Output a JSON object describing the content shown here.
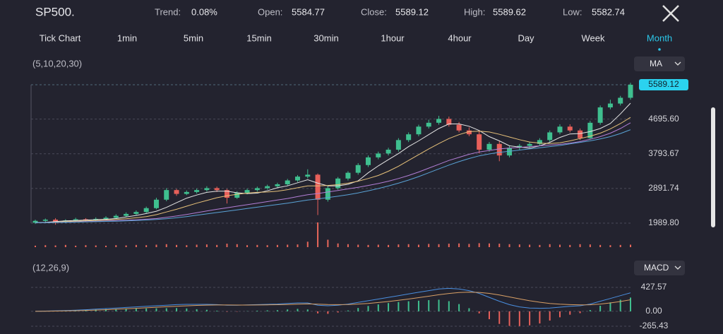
{
  "header": {
    "symbol": "SP500.",
    "fields": [
      {
        "label": "Trend:",
        "value": "0.08%"
      },
      {
        "label": "Open:",
        "value": "5584.77"
      },
      {
        "label": "Close:",
        "value": "5589.12"
      },
      {
        "label": "High:",
        "value": "5589.62"
      },
      {
        "label": "Low:",
        "value": "5582.74"
      }
    ]
  },
  "tabs": [
    "Tick Chart",
    "1min",
    "5min",
    "15min",
    "30min",
    "1hour",
    "4hour",
    "Day",
    "Week",
    "Month"
  ],
  "active_tab": 9,
  "chart_data": [
    {
      "type": "candlestick",
      "indicator_label": "(5,10,20,30)",
      "indicator": "MA",
      "up_color": "#3fbf8f",
      "down_color": "#e8605a",
      "open": [
        2000,
        2050,
        2080,
        2020,
        2060,
        2090,
        2070,
        2100,
        2130,
        2180,
        2230,
        2280,
        2380,
        2600,
        2850,
        2750,
        2800,
        2850,
        2900,
        2850,
        2650,
        2780,
        2850,
        2900,
        2950,
        3000,
        3100,
        3200,
        3250,
        2600,
        2900,
        3150,
        3300,
        3500,
        3700,
        3800,
        3900,
        4150,
        4300,
        4500,
        4600,
        4700,
        4550,
        4400,
        4300,
        3900,
        4050,
        3750,
        3950,
        4000,
        4050,
        4150,
        4350,
        4500,
        4400,
        4200,
        4600,
        5000,
        5100,
        5250
      ],
      "high": [
        2080,
        2110,
        2120,
        2090,
        2130,
        2120,
        2140,
        2170,
        2220,
        2270,
        2320,
        2420,
        2650,
        2900,
        2880,
        2840,
        2890,
        2950,
        2940,
        2880,
        2820,
        2890,
        2940,
        2990,
        3040,
        3140,
        3240,
        3390,
        3280,
        2950,
        3190,
        3340,
        3550,
        3750,
        3850,
        3950,
        4200,
        4350,
        4550,
        4680,
        4780,
        4760,
        4620,
        4480,
        4380,
        4100,
        4120,
        4000,
        4050,
        4100,
        4200,
        4400,
        4560,
        4560,
        4450,
        4650,
        5050,
        5200,
        5300,
        5640
      ],
      "low": [
        1970,
        1990,
        1950,
        1990,
        2020,
        2030,
        2040,
        2070,
        2100,
        2150,
        2200,
        2250,
        2350,
        2560,
        2700,
        2720,
        2760,
        2810,
        2800,
        2500,
        2620,
        2740,
        2810,
        2860,
        2910,
        2960,
        3060,
        3150,
        2200,
        2550,
        2860,
        3100,
        3250,
        3450,
        3650,
        3750,
        3850,
        4100,
        4250,
        4450,
        4550,
        4500,
        4350,
        4250,
        3800,
        3850,
        3600,
        3700,
        3900,
        3950,
        4000,
        4100,
        4300,
        4350,
        4150,
        4180,
        4550,
        4950,
        5050,
        5200
      ],
      "close": [
        2050,
        2080,
        2020,
        2060,
        2090,
        2070,
        2100,
        2130,
        2180,
        2230,
        2280,
        2380,
        2600,
        2850,
        2750,
        2800,
        2850,
        2900,
        2850,
        2650,
        2780,
        2850,
        2900,
        2950,
        3000,
        3100,
        3200,
        3250,
        2600,
        2900,
        3150,
        3300,
        3500,
        3700,
        3800,
        3900,
        4150,
        4300,
        4500,
        4600,
        4700,
        4550,
        4400,
        4300,
        3900,
        4050,
        3750,
        3950,
        4000,
        4050,
        4150,
        4350,
        4500,
        4400,
        4200,
        4600,
        5000,
        5100,
        5250,
        5589.12
      ],
      "series": [
        {
          "color": "#e6e6e6",
          "values": [
            2000,
            2010,
            2030,
            2050,
            2060,
            2070,
            2080,
            2090,
            2110,
            2150,
            2190,
            2240,
            2300,
            2400,
            2520,
            2640,
            2720,
            2790,
            2820,
            2820,
            2780,
            2760,
            2770,
            2830,
            2910,
            2960,
            3040,
            3120,
            3030,
            2960,
            2960,
            3000,
            3090,
            3300,
            3480,
            3640,
            3800,
            3980,
            4130,
            4290,
            4450,
            4570,
            4570,
            4510,
            4400,
            4240,
            4130,
            4000,
            3970,
            3940,
            4000,
            4090,
            4220,
            4310,
            4320,
            4370,
            4450,
            4580,
            4830,
            5110
          ]
        },
        {
          "color": "#e8c27a",
          "values": [
            2000,
            2005,
            2015,
            2030,
            2040,
            2050,
            2060,
            2070,
            2085,
            2105,
            2130,
            2160,
            2210,
            2280,
            2350,
            2430,
            2510,
            2580,
            2650,
            2700,
            2740,
            2770,
            2790,
            2800,
            2820,
            2860,
            2910,
            2960,
            2960,
            2970,
            2990,
            3030,
            3080,
            3150,
            3230,
            3340,
            3470,
            3620,
            3770,
            3920,
            4060,
            4190,
            4290,
            4370,
            4380,
            4360,
            4300,
            4230,
            4160,
            4100,
            4070,
            4060,
            4080,
            4130,
            4190,
            4250,
            4330,
            4440,
            4580,
            4740
          ]
        },
        {
          "color": "#b27fd6",
          "values": [
            2000,
            2002,
            2008,
            2015,
            2022,
            2030,
            2038,
            2046,
            2055,
            2065,
            2078,
            2092,
            2110,
            2140,
            2175,
            2215,
            2260,
            2305,
            2350,
            2390,
            2430,
            2470,
            2510,
            2550,
            2590,
            2630,
            2680,
            2730,
            2760,
            2800,
            2840,
            2880,
            2920,
            2970,
            3020,
            3080,
            3150,
            3230,
            3320,
            3420,
            3520,
            3620,
            3700,
            3780,
            3840,
            3880,
            3920,
            3940,
            3960,
            3980,
            4000,
            4020,
            4040,
            4070,
            4110,
            4170,
            4240,
            4330,
            4450,
            4600
          ]
        },
        {
          "color": "#5aa3d6",
          "values": [
            2000,
            2002,
            2006,
            2010,
            2016,
            2022,
            2028,
            2035,
            2042,
            2050,
            2060,
            2070,
            2085,
            2105,
            2130,
            2160,
            2195,
            2230,
            2265,
            2300,
            2335,
            2370,
            2405,
            2440,
            2475,
            2510,
            2550,
            2590,
            2620,
            2655,
            2690,
            2730,
            2775,
            2830,
            2890,
            2955,
            3030,
            3110,
            3200,
            3300,
            3400,
            3500,
            3590,
            3670,
            3740,
            3790,
            3830,
            3860,
            3890,
            3920,
            3950,
            3980,
            4010,
            4050,
            4090,
            4130,
            4180,
            4240,
            4320,
            4420
          ]
        }
      ],
      "ylim": [
        1989.8,
        5589.12
      ],
      "yticks": [
        {
          "value": 4695.6,
          "label": "4695.60"
        },
        3793.67,
        2891.74,
        {
          "value": 1989.8,
          "label": "1989.80"
        }
      ]
    },
    {
      "type": "bar",
      "color": "#e8675a",
      "values": [
        6,
        8,
        7,
        9,
        6,
        8,
        7,
        6,
        8,
        7,
        9,
        8,
        10,
        12,
        9,
        8,
        10,
        11,
        9,
        14,
        12,
        8,
        9,
        8,
        9,
        10,
        11,
        22,
        100,
        30,
        15,
        12,
        10,
        9,
        10,
        9,
        11,
        12,
        10,
        13,
        12,
        14,
        15,
        13,
        16,
        15,
        14,
        12,
        11,
        10,
        9,
        12,
        10,
        9,
        12,
        11,
        9,
        8,
        9,
        10
      ]
    },
    {
      "type": "macd",
      "indicator_label": "(12,26,9)",
      "indicator": "MACD",
      "up_color": "#3fbf8f",
      "down_color": "#e8605a",
      "histogram": [
        0,
        6,
        10,
        14,
        16,
        26,
        34,
        40,
        44,
        48,
        50,
        52,
        54,
        56,
        58,
        52,
        38,
        28,
        12,
        -8,
        -6,
        4,
        12,
        18,
        22,
        34,
        44,
        34,
        -36,
        -44,
        -20,
        16,
        60,
        96,
        124,
        148,
        166,
        180,
        190,
        200,
        208,
        182,
        130,
        56,
        -36,
        -140,
        -224,
        -260,
        -262,
        -250,
        -216,
        -164,
        -106,
        -60,
        -32,
        24,
        100,
        160,
        208,
        246
      ],
      "series": [
        {
          "color": "#4a8fe0",
          "values": [
            0,
            5,
            10,
            15,
            20,
            30,
            40,
            50,
            60,
            70,
            80,
            90,
            100,
            110,
            120,
            125,
            125,
            125,
            120,
            110,
            110,
            115,
            120,
            125,
            130,
            140,
            150,
            150,
            110,
            100,
            110,
            130,
            160,
            190,
            220,
            250,
            280,
            310,
            340,
            370,
            400,
            410,
            400,
            370,
            320,
            250,
            180,
            120,
            80,
            60,
            55,
            60,
            75,
            90,
            100,
            130,
            180,
            230,
            280,
            330
          ]
        },
        {
          "color": "#d9a066",
          "values": [
            0,
            2,
            5,
            8,
            12,
            17,
            23,
            30,
            38,
            46,
            55,
            64,
            73,
            82,
            91,
            99,
            106,
            111,
            114,
            114,
            113,
            113,
            114,
            116,
            119,
            123,
            128,
            133,
            128,
            122,
            120,
            122,
            130,
            142,
            158,
            176,
            197,
            220,
            245,
            270,
            296,
            319,
            335,
            342,
            338,
            320,
            292,
            258,
            222,
            190,
            163,
            142,
            128,
            120,
            116,
            118,
            130,
            150,
            176,
            207
          ]
        }
      ],
      "ylim": [
        -265.43,
        427.57
      ],
      "yticks": [
        427.57,
        {
          "value": 0,
          "label": "0.00"
        },
        -265.43
      ]
    }
  ]
}
